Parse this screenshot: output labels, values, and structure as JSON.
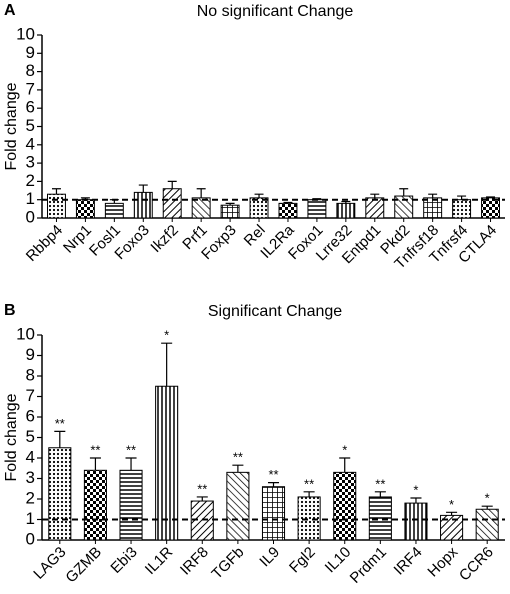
{
  "chart_data": [
    {
      "type": "bar",
      "panel_label": "A",
      "title": "No significant Change",
      "y_label": "Fold change",
      "categories": [
        "Rbbp4",
        "Nrp1",
        "Fosl1",
        "Foxo3",
        "Ikzf2",
        "Prf1",
        "Foxp3",
        "Rel",
        "IL2Ra",
        "Foxo1",
        "Lrre32",
        "Entpd1",
        "Pkd2",
        "Tnfrsf18",
        "Tnfrsf4",
        "CTLA4"
      ],
      "values": [
        1.3,
        1.0,
        0.8,
        1.4,
        1.6,
        1.1,
        0.7,
        1.1,
        0.8,
        1.0,
        0.8,
        1.1,
        1.2,
        1.1,
        1.0,
        1.1
      ],
      "errors": [
        0.3,
        0.1,
        0.2,
        0.4,
        0.4,
        0.5,
        0.1,
        0.2,
        0.05,
        0.05,
        0.1,
        0.2,
        0.4,
        0.2,
        0.2,
        0.05
      ],
      "color": "#000000",
      "reference_line": 1,
      "ylim": [
        0,
        10
      ],
      "yticks": [
        0,
        1,
        2,
        3,
        4,
        5,
        6,
        7,
        8,
        9,
        10
      ]
    },
    {
      "type": "bar",
      "panel_label": "B",
      "title": "Significant Change",
      "y_label": "Fold change",
      "categories": [
        "LAG3",
        "GZMB",
        "Ebi3",
        "IL1R",
        "IRF8",
        "TGFb",
        "IL9",
        "Fgl2",
        "IL10",
        "Prdm1",
        "IRF4",
        "Hopx",
        "CCR6"
      ],
      "values": [
        4.5,
        3.4,
        3.4,
        7.5,
        1.9,
        3.3,
        2.6,
        2.1,
        3.3,
        2.1,
        1.8,
        1.2,
        1.5
      ],
      "errors": [
        0.8,
        0.6,
        0.6,
        2.1,
        0.2,
        0.35,
        0.2,
        0.25,
        0.7,
        0.25,
        0.25,
        0.15,
        0.15
      ],
      "significance": [
        "**",
        "**",
        "**",
        "*",
        "**",
        "**",
        "**",
        "**",
        "*",
        "**",
        "*",
        "*",
        "*"
      ],
      "color": "#000000",
      "reference_line": 1,
      "ylim": [
        0,
        10
      ],
      "yticks": [
        0,
        1,
        2,
        3,
        4,
        5,
        6,
        7,
        8,
        9,
        10
      ]
    }
  ]
}
